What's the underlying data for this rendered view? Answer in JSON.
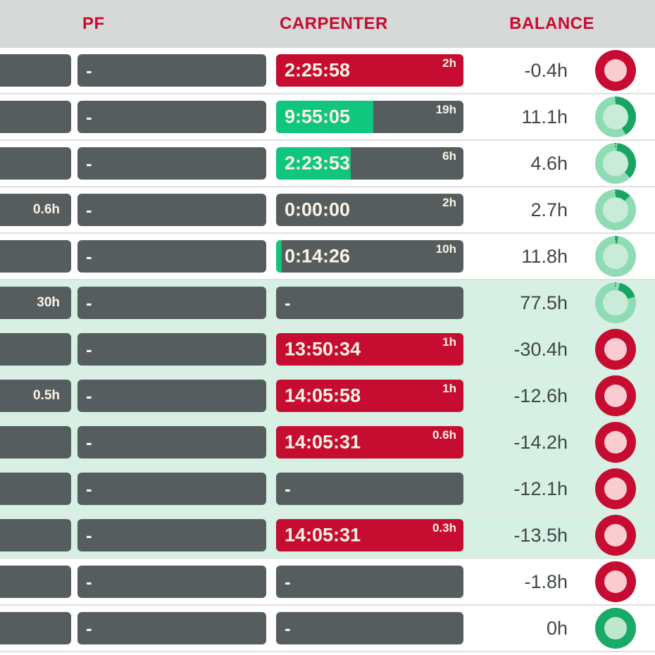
{
  "header": {
    "columns": [
      {
        "label": "PF"
      },
      {
        "label": "CARPENTER"
      },
      {
        "label": "BALANCE"
      }
    ]
  },
  "colors": {
    "header_bg": "#d7d8d8",
    "header_text": "#c60c30",
    "bar_dark": "#565d5f",
    "bar_text_cream": "#faf4e4",
    "fill_green": "#10c57e",
    "fill_red": "#c60c30",
    "row_mint_bg": "#d7f0e4",
    "balance_text": "#3f4647",
    "donut_red_ring": "#c60c30",
    "donut_red_hole": "#f9ccd1",
    "donut_green_ring": "#17ab67",
    "donut_green_hole": "#bfe7d0",
    "donut_progress_base": "#8edbb4",
    "donut_progress_arc": "#18a564",
    "donut_progress_hole": "#c8ecd8"
  },
  "rows": [
    {
      "bg": "white",
      "col1_label": "",
      "pf": "-",
      "carpenter": {
        "time": "2:25:58",
        "limit": "2h",
        "status": "over",
        "fill_pct": 100
      },
      "balance": "-0.4h",
      "donut": {
        "type": "red"
      }
    },
    {
      "bg": "white",
      "col1_label": "",
      "pf": "-",
      "carpenter": {
        "time": "9:55:05",
        "limit": "19h",
        "status": "ok",
        "fill_pct": 52
      },
      "balance": "11.1h",
      "donut": {
        "type": "progress",
        "start": 0,
        "end": 150
      }
    },
    {
      "bg": "white",
      "col1_label": "",
      "pf": "-",
      "carpenter": {
        "time": "2:23:53",
        "limit": "6h",
        "status": "ok",
        "fill_pct": 40
      },
      "balance": "4.6h",
      "donut": {
        "type": "progress",
        "start": 5,
        "end": 135
      }
    },
    {
      "bg": "white",
      "col1_label": "0.6h",
      "pf": "-",
      "carpenter": {
        "time": "0:00:00",
        "limit": "2h",
        "status": "ok",
        "fill_pct": 0
      },
      "balance": "2.7h",
      "donut": {
        "type": "progress",
        "start": 0,
        "end": 45
      }
    },
    {
      "bg": "white",
      "col1_label": "",
      "pf": "-",
      "carpenter": {
        "time": "0:14:26",
        "limit": "10h",
        "status": "ok",
        "fill_pct": 3
      },
      "balance": "11.8h",
      "donut": {
        "type": "progress",
        "start": 0,
        "end": 7
      }
    },
    {
      "bg": "mint",
      "col1_label": "30h",
      "pf": "-",
      "carpenter": {
        "dash": "-"
      },
      "balance": "77.5h",
      "donut": {
        "type": "progress",
        "start": 12,
        "end": 72
      }
    },
    {
      "bg": "mint",
      "col1_label": "",
      "pf": "-",
      "carpenter": {
        "time": "13:50:34",
        "limit": "1h",
        "status": "over",
        "fill_pct": 100
      },
      "balance": "-30.4h",
      "donut": {
        "type": "red"
      }
    },
    {
      "bg": "mint",
      "col1_label": "0.5h",
      "pf": "-",
      "carpenter": {
        "time": "14:05:58",
        "limit": "1h",
        "status": "over",
        "fill_pct": 100
      },
      "balance": "-12.6h",
      "donut": {
        "type": "red"
      }
    },
    {
      "bg": "mint",
      "col1_label": "",
      "pf": "-",
      "carpenter": {
        "time": "14:05:31",
        "limit": "0.6h",
        "status": "over",
        "fill_pct": 100
      },
      "balance": "-14.2h",
      "donut": {
        "type": "red"
      }
    },
    {
      "bg": "mint",
      "col1_label": "",
      "pf": "-",
      "carpenter": {
        "dash": "-"
      },
      "balance": "-12.1h",
      "donut": {
        "type": "red"
      }
    },
    {
      "bg": "mint",
      "col1_label": "",
      "pf": "-",
      "carpenter": {
        "time": "14:05:31",
        "limit": "0.3h",
        "status": "over",
        "fill_pct": 100
      },
      "balance": "-13.5h",
      "donut": {
        "type": "red"
      }
    },
    {
      "bg": "white",
      "col1_label": "",
      "pf": "-",
      "carpenter": {
        "dash": "-"
      },
      "balance": "-1.8h",
      "donut": {
        "type": "red"
      }
    },
    {
      "bg": "white",
      "col1_label": "",
      "pf": "-",
      "carpenter": {
        "dash": "-"
      },
      "balance": "0h",
      "donut": {
        "type": "green"
      }
    }
  ]
}
